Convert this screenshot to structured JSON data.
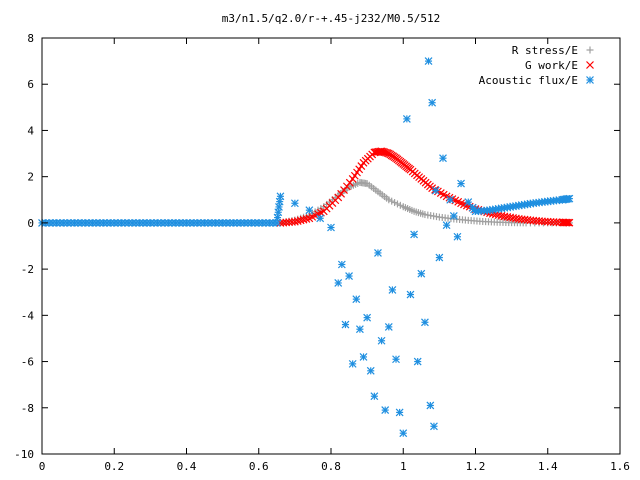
{
  "chart_data": {
    "type": "scatter",
    "title": "m3/n1.5/q2.0/r-+.45-j232/M0.5/512",
    "xlabel": "",
    "ylabel": "",
    "xlim": [
      0,
      1.6
    ],
    "ylim": [
      -10,
      8
    ],
    "x_ticks": [
      "0",
      "0.2",
      "0.4",
      "0.6",
      "0.8",
      "1",
      "1.2",
      "1.4",
      "1.6"
    ],
    "y_ticks": [
      "-10",
      "-8",
      "-6",
      "-4",
      "-2",
      "0",
      "2",
      "4",
      "6",
      "8"
    ],
    "grid": false,
    "legend_position": "top-right",
    "series": [
      {
        "name": "R stress/E",
        "marker": "plus",
        "color": "#a0a0a0",
        "points": [
          [
            0.66,
            0.0
          ],
          [
            0.7,
            0.12
          ],
          [
            0.74,
            0.33
          ],
          [
            0.78,
            0.7
          ],
          [
            0.82,
            1.2
          ],
          [
            0.85,
            1.55
          ],
          [
            0.88,
            1.75
          ],
          [
            0.9,
            1.7
          ],
          [
            0.93,
            1.35
          ],
          [
            0.96,
            1.0
          ],
          [
            1.0,
            0.7
          ],
          [
            1.03,
            0.5
          ],
          [
            1.06,
            0.36
          ],
          [
            1.1,
            0.25
          ],
          [
            1.14,
            0.17
          ],
          [
            1.18,
            0.11
          ],
          [
            1.22,
            0.06
          ],
          [
            1.26,
            0.03
          ],
          [
            1.3,
            0.01
          ],
          [
            1.34,
            0.0
          ],
          [
            1.4,
            0.0
          ],
          [
            1.46,
            0.0
          ]
        ]
      },
      {
        "name": "G work/E",
        "marker": "cross",
        "color": "#ff0000",
        "points": [
          [
            0.66,
            0.0
          ],
          [
            0.7,
            0.05
          ],
          [
            0.74,
            0.2
          ],
          [
            0.78,
            0.5
          ],
          [
            0.82,
            1.1
          ],
          [
            0.86,
            1.9
          ],
          [
            0.89,
            2.6
          ],
          [
            0.92,
            3.05
          ],
          [
            0.94,
            3.1
          ],
          [
            0.96,
            3.0
          ],
          [
            0.98,
            2.8
          ],
          [
            1.0,
            2.55
          ],
          [
            1.02,
            2.3
          ],
          [
            1.05,
            1.9
          ],
          [
            1.08,
            1.5
          ],
          [
            1.12,
            1.15
          ],
          [
            1.16,
            0.85
          ],
          [
            1.2,
            0.6
          ],
          [
            1.24,
            0.42
          ],
          [
            1.28,
            0.28
          ],
          [
            1.32,
            0.17
          ],
          [
            1.36,
            0.1
          ],
          [
            1.4,
            0.05
          ],
          [
            1.44,
            0.02
          ],
          [
            1.46,
            0.01
          ]
        ]
      },
      {
        "name": "Acoustic flux/E",
        "marker": "star",
        "color": "#1f8fe0",
        "points": [
          [
            0.0,
            0.0
          ],
          [
            0.05,
            0.0
          ],
          [
            0.1,
            0.0
          ],
          [
            0.15,
            0.0
          ],
          [
            0.2,
            0.0
          ],
          [
            0.25,
            0.0
          ],
          [
            0.3,
            0.0
          ],
          [
            0.35,
            0.0
          ],
          [
            0.4,
            0.0
          ],
          [
            0.45,
            0.0
          ],
          [
            0.5,
            0.0
          ],
          [
            0.55,
            0.0
          ],
          [
            0.6,
            0.0
          ],
          [
            0.65,
            0.0
          ],
          [
            0.66,
            1.15
          ],
          [
            0.7,
            0.85
          ],
          [
            0.74,
            0.55
          ],
          [
            0.77,
            0.2
          ],
          [
            0.8,
            -0.2
          ],
          [
            0.82,
            -2.6
          ],
          [
            0.83,
            -1.8
          ],
          [
            0.84,
            -4.4
          ],
          [
            0.85,
            -2.3
          ],
          [
            0.86,
            -6.1
          ],
          [
            0.87,
            -3.3
          ],
          [
            0.88,
            -4.6
          ],
          [
            0.89,
            -5.8
          ],
          [
            0.9,
            -4.1
          ],
          [
            0.91,
            -6.4
          ],
          [
            0.92,
            -7.5
          ],
          [
            0.93,
            -1.3
          ],
          [
            0.94,
            -5.1
          ],
          [
            0.95,
            -8.1
          ],
          [
            0.96,
            -4.5
          ],
          [
            0.97,
            -2.9
          ],
          [
            0.98,
            -5.9
          ],
          [
            0.99,
            -8.2
          ],
          [
            1.0,
            -9.1
          ],
          [
            1.01,
            4.5
          ],
          [
            1.02,
            -3.1
          ],
          [
            1.03,
            -0.5
          ],
          [
            1.04,
            -6.0
          ],
          [
            1.05,
            -2.2
          ],
          [
            1.06,
            -4.3
          ],
          [
            1.07,
            7.0
          ],
          [
            1.075,
            -7.9
          ],
          [
            1.08,
            5.2
          ],
          [
            1.085,
            -8.8
          ],
          [
            1.09,
            1.4
          ],
          [
            1.1,
            -1.5
          ],
          [
            1.11,
            2.8
          ],
          [
            1.12,
            -0.1
          ],
          [
            1.13,
            1.0
          ],
          [
            1.14,
            0.3
          ],
          [
            1.15,
            -0.6
          ],
          [
            1.16,
            1.7
          ],
          [
            1.18,
            0.9
          ],
          [
            1.2,
            0.5
          ],
          [
            1.24,
            0.55
          ],
          [
            1.28,
            0.65
          ],
          [
            1.32,
            0.75
          ],
          [
            1.36,
            0.85
          ],
          [
            1.4,
            0.93
          ],
          [
            1.44,
            1.0
          ],
          [
            1.46,
            1.05
          ]
        ]
      }
    ]
  }
}
